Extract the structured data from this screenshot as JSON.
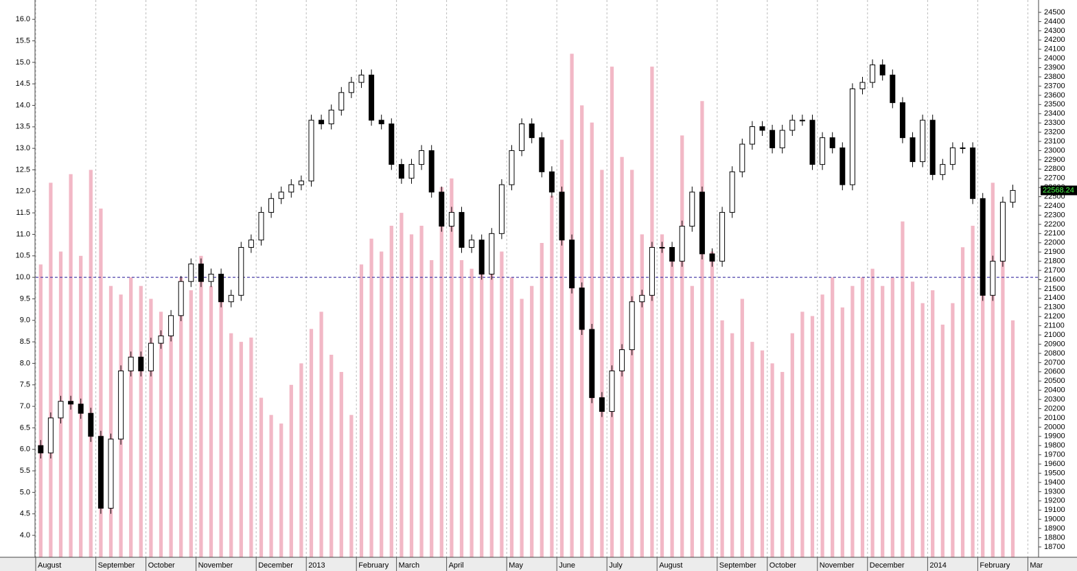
{
  "chart_data": {
    "type": "candlestick",
    "categories": [
      "August",
      null,
      null,
      null,
      null,
      null,
      "September",
      null,
      null,
      null,
      null,
      "October",
      null,
      null,
      null,
      null,
      "November",
      null,
      null,
      null,
      null,
      null,
      "December",
      null,
      null,
      null,
      null,
      "2013",
      null,
      null,
      null,
      null,
      "February",
      null,
      null,
      null,
      "March",
      null,
      null,
      null,
      null,
      "April",
      null,
      null,
      null,
      null,
      null,
      "May",
      null,
      null,
      null,
      null,
      "June",
      null,
      null,
      null,
      null,
      "July",
      null,
      null,
      null,
      null,
      "August",
      null,
      null,
      null,
      null,
      null,
      "September",
      null,
      null,
      null,
      null,
      "October",
      null,
      null,
      null,
      null,
      "November",
      null,
      null,
      null,
      null,
      "December",
      null,
      null,
      null,
      null,
      null,
      "2014",
      null,
      null,
      null,
      null,
      "February",
      null,
      null,
      null,
      null,
      "Mar"
    ],
    "open": [
      19800,
      19720,
      20100,
      20280,
      20250,
      20150,
      19900,
      19120,
      19870,
      20610,
      20760,
      20610,
      20910,
      20990,
      21210,
      21580,
      21770,
      21580,
      21660,
      21360,
      21430,
      21950,
      22030,
      22330,
      22480,
      22550,
      22630,
      22670,
      23330,
      23290,
      23440,
      23630,
      23740,
      23820,
      23330,
      23290,
      22850,
      22700,
      22850,
      23000,
      22550,
      22180,
      22330,
      21950,
      22030,
      21660,
      22100,
      22630,
      23000,
      23290,
      23140,
      22770,
      22550,
      22030,
      21510,
      21060,
      20320,
      20170,
      20610,
      20840,
      21360,
      21430,
      21950,
      21950,
      21800,
      22180,
      22550,
      21880,
      21800,
      22330,
      22770,
      23070,
      23260,
      23220,
      23030,
      23220,
      23330,
      23330,
      22850,
      23140,
      23030,
      22630,
      23670,
      23740,
      23930,
      23820,
      23520,
      23140,
      22880,
      23330,
      22740,
      22850,
      23030,
      23030,
      22480,
      21430,
      21800,
      22440,
      null,
      null
    ],
    "high": [
      19860,
      20160,
      20340,
      20340,
      20310,
      20210,
      19960,
      19930,
      20670,
      20820,
      20820,
      20970,
      21050,
      21270,
      21640,
      21830,
      21830,
      21720,
      21720,
      21490,
      22010,
      22090,
      22390,
      22540,
      22610,
      22690,
      22730,
      23390,
      23390,
      23500,
      23690,
      23800,
      23880,
      23880,
      23390,
      23350,
      22910,
      22910,
      23060,
      23060,
      22610,
      22390,
      22390,
      22090,
      22090,
      22160,
      22690,
      23060,
      23350,
      23350,
      23200,
      22830,
      22610,
      22090,
      21570,
      21120,
      20380,
      20670,
      20900,
      21420,
      21490,
      22010,
      22010,
      22010,
      22240,
      22610,
      22610,
      21940,
      22390,
      22830,
      23130,
      23320,
      23320,
      23280,
      23280,
      23390,
      23390,
      23390,
      23200,
      23200,
      23090,
      23730,
      23800,
      23990,
      23990,
      23880,
      23580,
      23200,
      23390,
      23390,
      22910,
      23090,
      23090,
      23090,
      22540,
      21860,
      22500,
      22630,
      null,
      null
    ],
    "low": [
      19660,
      19660,
      20040,
      20190,
      20090,
      19840,
      19060,
      19060,
      19810,
      20550,
      20550,
      20550,
      20850,
      20930,
      21150,
      21520,
      21520,
      21520,
      21300,
      21300,
      21370,
      21890,
      21970,
      22270,
      22420,
      22490,
      22570,
      22610,
      23230,
      23230,
      23380,
      23570,
      23680,
      23270,
      23230,
      22790,
      22640,
      22640,
      22790,
      22490,
      22120,
      22120,
      21890,
      21890,
      21600,
      21600,
      22040,
      22570,
      22940,
      23080,
      22710,
      22490,
      21970,
      21450,
      21000,
      20260,
      20110,
      20110,
      20550,
      20780,
      21300,
      21370,
      21890,
      21740,
      21740,
      22120,
      21820,
      21740,
      21740,
      22270,
      22710,
      23010,
      23160,
      22970,
      22970,
      23160,
      23270,
      22790,
      22790,
      22970,
      22570,
      22570,
      23610,
      23680,
      23760,
      23460,
      23080,
      22820,
      22820,
      22680,
      22680,
      22790,
      22970,
      22420,
      21370,
      21370,
      21740,
      22380,
      null,
      null
    ],
    "close": [
      19720,
      20100,
      20280,
      20250,
      20150,
      19900,
      19120,
      19870,
      20610,
      20760,
      20610,
      20910,
      20990,
      21210,
      21580,
      21770,
      21580,
      21660,
      21360,
      21430,
      21950,
      22030,
      22330,
      22480,
      22550,
      22630,
      22670,
      23330,
      23290,
      23440,
      23630,
      23740,
      23820,
      23330,
      23290,
      22850,
      22700,
      22850,
      23000,
      22550,
      22180,
      22330,
      21950,
      22030,
      21660,
      22100,
      22630,
      23000,
      23290,
      23140,
      22770,
      22550,
      22030,
      21510,
      21060,
      20320,
      20170,
      20610,
      20840,
      21360,
      21430,
      21950,
      21950,
      21800,
      22180,
      22550,
      21880,
      21800,
      22330,
      22770,
      23070,
      23260,
      23220,
      23030,
      23220,
      23330,
      23330,
      22850,
      23140,
      23030,
      22630,
      23670,
      23740,
      23930,
      23820,
      23520,
      23140,
      22880,
      23330,
      22740,
      22850,
      23030,
      23030,
      22480,
      21430,
      21800,
      22440,
      22568.24,
      null,
      null
    ],
    "axis": "y2",
    "up_color": "#ffffff",
    "down_color": "#000000",
    "bars": [
      10.3,
      12.2,
      10.6,
      12.4,
      10.5,
      12.5,
      11.6,
      9.8,
      9.6,
      10.0,
      9.8,
      9.5,
      9.2,
      9.0,
      10.0,
      9.7,
      10.5,
      9.8,
      9.5,
      8.7,
      8.5,
      8.6,
      7.2,
      6.8,
      6.6,
      7.5,
      8.0,
      8.8,
      9.2,
      8.2,
      7.8,
      6.8,
      10.3,
      10.9,
      10.6,
      11.2,
      11.5,
      11.0,
      11.2,
      10.4,
      12.1,
      12.3,
      10.4,
      10.2,
      10.3,
      10.1,
      10.6,
      10.0,
      9.5,
      9.8,
      10.8,
      11.9,
      13.2,
      15.2,
      14.0,
      13.6,
      12.5,
      14.9,
      12.8,
      12.5,
      11.0,
      14.9,
      11.0,
      10.4,
      13.3,
      9.8,
      14.1,
      10.6,
      9.0,
      8.7,
      9.5,
      8.5,
      8.3,
      8.0,
      7.8,
      8.7,
      9.2,
      9.1,
      9.6,
      10.0,
      9.3,
      9.8,
      10.0,
      10.2,
      9.8,
      10.0,
      11.3,
      9.9,
      9.4,
      9.7,
      8.9,
      9.4,
      10.7,
      11.2,
      11.5,
      12.2,
      10.5,
      9.0,
      null,
      null
    ],
    "bar_color": "#f2b8c6",
    "hline": 10,
    "hline_color": "#4b3fa8",
    "ylim": [
      3.49,
      16.45
    ],
    "yticks": [
      {
        "value": 4,
        "label": "4.0"
      },
      {
        "value": 4.5,
        "label": "4.5"
      },
      {
        "value": 5,
        "label": "5.0"
      },
      {
        "value": 5.5,
        "label": "5.5"
      },
      {
        "value": 6,
        "label": "6.0"
      },
      {
        "value": 6.5,
        "label": "6.5"
      },
      {
        "value": 7,
        "label": "7.0"
      },
      {
        "value": 7.5,
        "label": "7.5"
      },
      {
        "value": 8,
        "label": "8.0"
      },
      {
        "value": 8.5,
        "label": "8.5"
      },
      {
        "value": 9,
        "label": "9.0"
      },
      {
        "value": 9.5,
        "label": "9.5"
      },
      {
        "value": 10,
        "label": "10.0"
      },
      {
        "value": 10.5,
        "label": "10.5"
      },
      {
        "value": 11,
        "label": "11.0"
      },
      {
        "value": 11.5,
        "label": "11.5"
      },
      {
        "value": 12,
        "label": "12.0"
      },
      {
        "value": 12.5,
        "label": "12.5"
      },
      {
        "value": 13,
        "label": "13.0"
      },
      {
        "value": 13.5,
        "label": "13.5"
      },
      {
        "value": 14,
        "label": "14.0"
      },
      {
        "value": 14.5,
        "label": "14.5"
      },
      {
        "value": 15,
        "label": "15.0"
      },
      {
        "value": 15.5,
        "label": "15.5"
      },
      {
        "value": 16,
        "label": "16.0"
      }
    ],
    "y2lim": [
      18588,
      24634
    ],
    "y2ticks": [
      18700,
      18800,
      18900,
      19000,
      19100,
      19200,
      19300,
      19400,
      19500,
      19600,
      19700,
      19800,
      19900,
      20000,
      20100,
      20200,
      20300,
      20400,
      20500,
      20600,
      20700,
      20800,
      20900,
      21000,
      21100,
      21200,
      21300,
      21400,
      21500,
      21600,
      21700,
      21800,
      21900,
      22000,
      22100,
      22200,
      22300,
      22400,
      22500,
      22600,
      22700,
      22800,
      22900,
      23000,
      23100,
      23200,
      23300,
      23400,
      23500,
      23600,
      23700,
      23800,
      23900,
      24000,
      24100,
      24200,
      24300,
      24400,
      24500
    ],
    "grid": true
  }
}
